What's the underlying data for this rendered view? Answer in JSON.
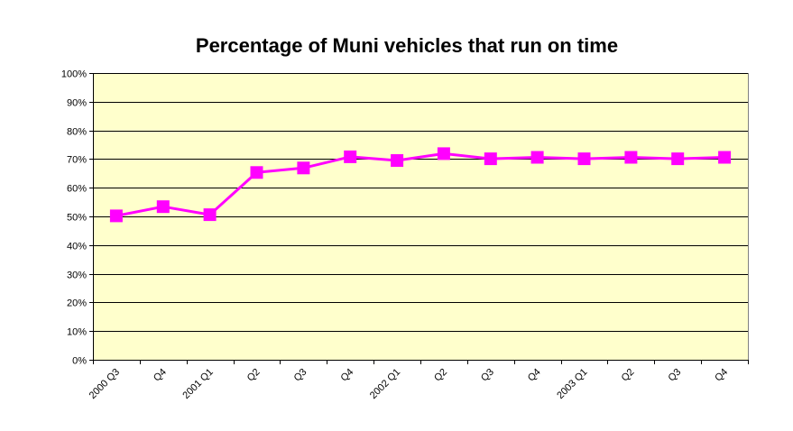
{
  "chart_data": {
    "type": "line",
    "title": "Percentage of Muni vehicles that run on time",
    "xlabel": "",
    "ylabel": "",
    "categories": [
      "2000 Q3",
      "Q4",
      "2001 Q1",
      "Q2",
      "Q3",
      "Q4",
      "2002 Q1",
      "Q2",
      "Q3",
      "Q4",
      "2003 Q1",
      "Q2",
      "Q3",
      "Q4"
    ],
    "series": [
      {
        "values": [
          50.2,
          53.4,
          50.6,
          65.3,
          66.9,
          70.8,
          69.5,
          71.9,
          70.1,
          70.6,
          70.1,
          70.6,
          70.1,
          70.6
        ],
        "color": "#ff00ff",
        "marker": "square"
      }
    ],
    "ylim": [
      0,
      100
    ],
    "y_ticks": [
      "0%",
      "10%",
      "20%",
      "30%",
      "40%",
      "50%",
      "60%",
      "70%",
      "80%",
      "90%",
      "100%"
    ],
    "grid": true,
    "legend": "none",
    "plot_background": "#ffffcc",
    "gridline_color": "#000000"
  }
}
